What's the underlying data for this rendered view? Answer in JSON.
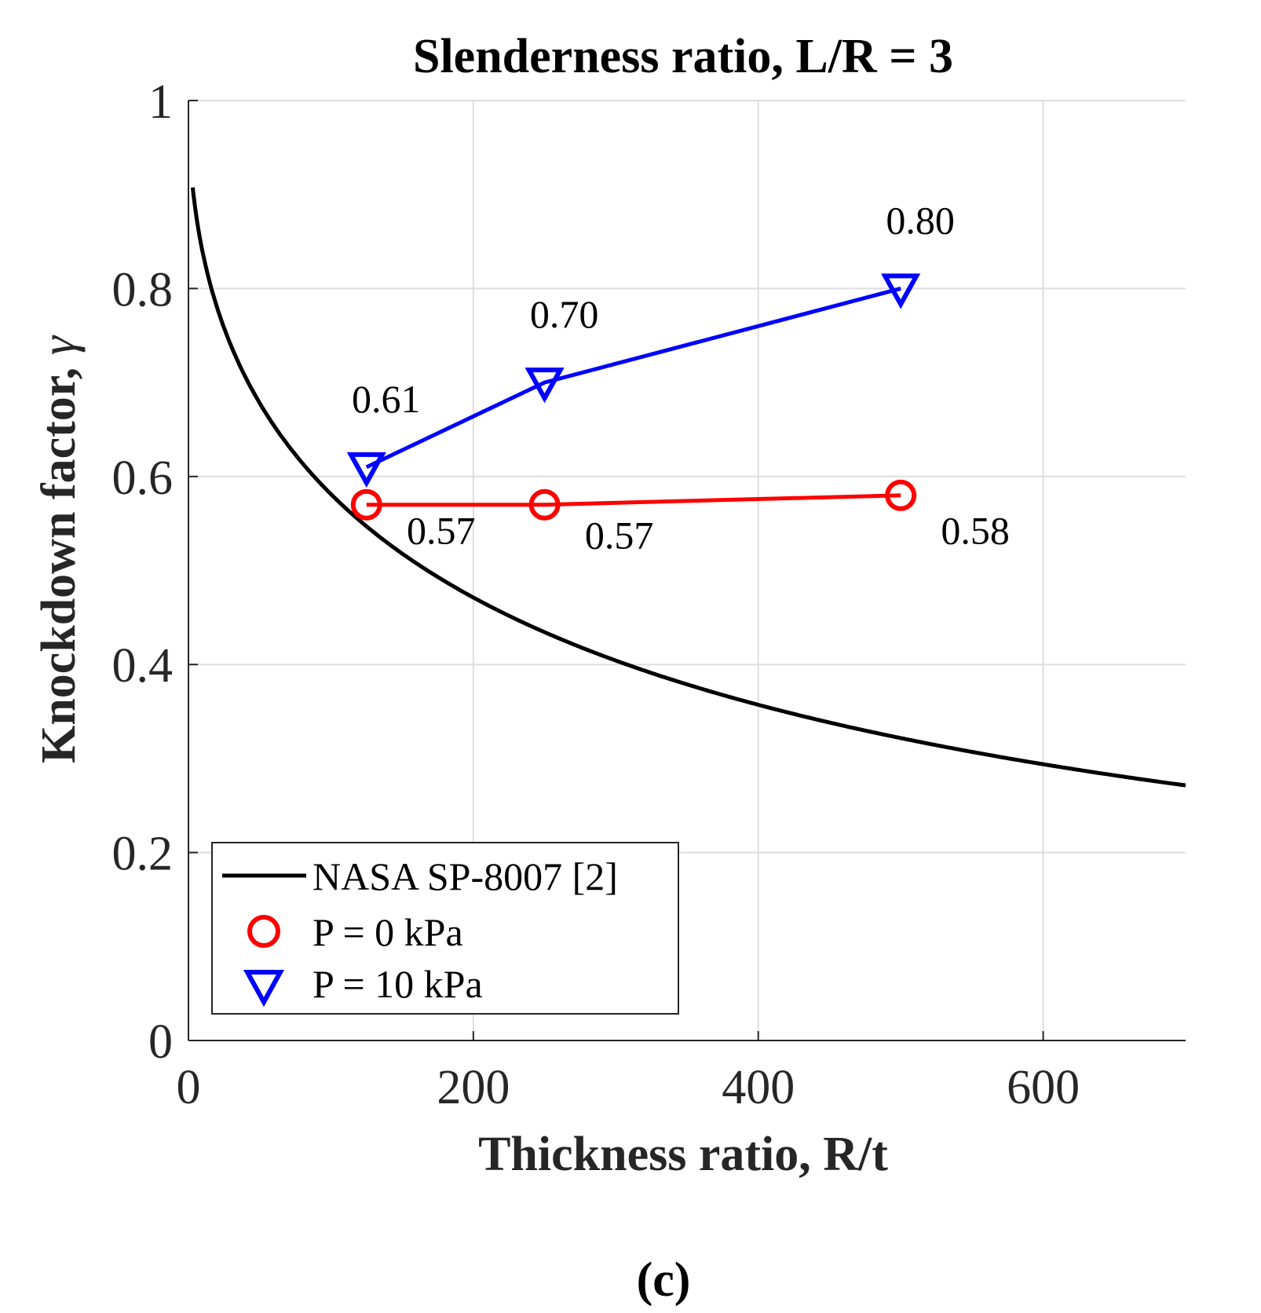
{
  "chart_data": {
    "type": "line",
    "title": "Slenderness ratio, L/R = 3",
    "xlabel": "Thickness ratio, R/t",
    "ylabel": "Knockdown factor, ",
    "ylabel_symbol": "γ",
    "xlim": [
      0,
      700
    ],
    "ylim": [
      0,
      1
    ],
    "xticks": [
      0,
      200,
      400,
      600
    ],
    "xtick_labels": [
      "0",
      "200",
      "400",
      "600"
    ],
    "yticks": [
      0,
      0.2,
      0.4,
      0.6,
      0.8,
      1
    ],
    "ytick_labels": [
      "0",
      "0.2",
      "0.4",
      "0.6",
      "0.8",
      "1"
    ],
    "grid": true,
    "legend_position": "bottom-left",
    "subfigure_label": "(c)",
    "series": [
      {
        "name": "NASA SP-8007 [2]",
        "kind": "curve",
        "color": "#000000",
        "formula": "1 - 0.901*(1 - exp(-sqrt(x)/16))",
        "x_range": [
          3,
          700
        ]
      },
      {
        "name": "P = 0 kPa",
        "kind": "markers",
        "marker": "circle",
        "color": "#ff0000",
        "x": [
          125,
          250,
          500
        ],
        "y": [
          0.57,
          0.57,
          0.58
        ],
        "labels": [
          "0.57",
          "0.57",
          "0.58"
        ],
        "label_placement": "below-right"
      },
      {
        "name": "P = 10 kPa",
        "kind": "markers",
        "marker": "triangle-down",
        "color": "#0000ff",
        "x": [
          125,
          250,
          500
        ],
        "y": [
          0.61,
          0.7,
          0.8
        ],
        "labels": [
          "0.61",
          "0.70",
          "0.80"
        ],
        "label_placement": "above"
      }
    ]
  }
}
